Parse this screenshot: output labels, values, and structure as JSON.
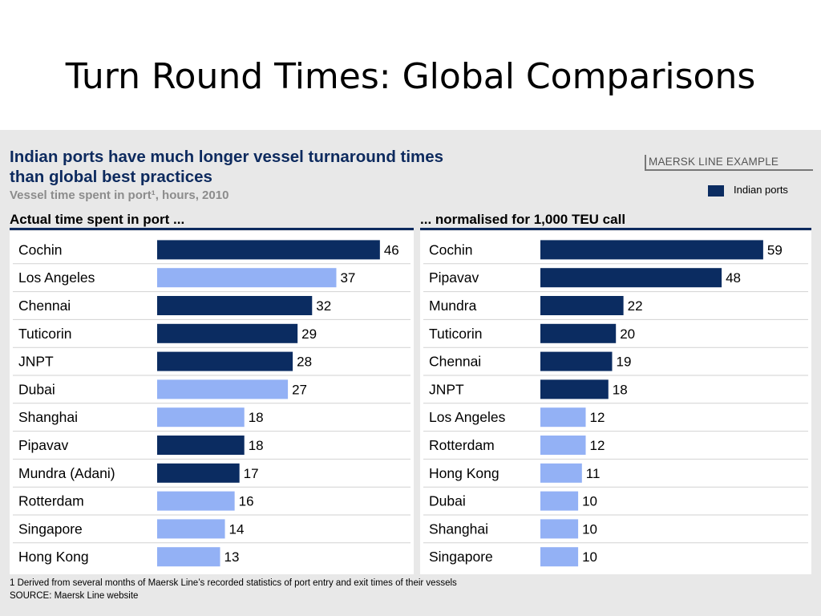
{
  "slide_title": "Turn Round Times: Global Comparisons",
  "headline_line1": "Indian ports have much longer vessel turnaround times",
  "headline_line2": "than global best practices",
  "subtitle": "Vessel time spent in port¹, hours, 2010",
  "example_label": "MAERSK LINE EXAMPLE",
  "legend_label": "Indian ports",
  "colors": {
    "indian": "#0b2c61",
    "other": "#93b1f5",
    "headline": "#0d2a5e"
  },
  "footnote": "1 Derived from several months of Maersk Line’s recorded statistics of port entry and exit times of their vessels",
  "source": "SOURCE: Maersk Line website",
  "chart_data": [
    {
      "type": "bar",
      "title": "Actual time spent in port ...",
      "categories": [
        "Cochin",
        "Los Angeles",
        "Chennai",
        "Tuticorin",
        "JNPT",
        "Dubai",
        "Shanghai",
        "Pipavav",
        "Mundra (Adani)",
        "Rotterdam",
        "Singapore",
        "Hong Kong"
      ],
      "values": [
        46,
        37,
        32,
        29,
        28,
        27,
        18,
        18,
        17,
        16,
        14,
        13
      ],
      "indian": [
        true,
        false,
        true,
        true,
        true,
        false,
        false,
        true,
        true,
        false,
        false,
        false
      ]
    },
    {
      "type": "bar",
      "title": "... normalised for 1,000 TEU call",
      "categories": [
        "Cochin",
        "Pipavav",
        "Mundra",
        "Tuticorin",
        "Chennai",
        "JNPT",
        "Los Angeles",
        "Rotterdam",
        "Hong Kong",
        "Dubai",
        "Shanghai",
        "Singapore"
      ],
      "values": [
        59,
        48,
        22,
        20,
        19,
        18,
        12,
        12,
        11,
        10,
        10,
        10
      ],
      "indian": [
        true,
        true,
        true,
        true,
        true,
        true,
        false,
        false,
        false,
        false,
        false,
        false
      ]
    }
  ]
}
